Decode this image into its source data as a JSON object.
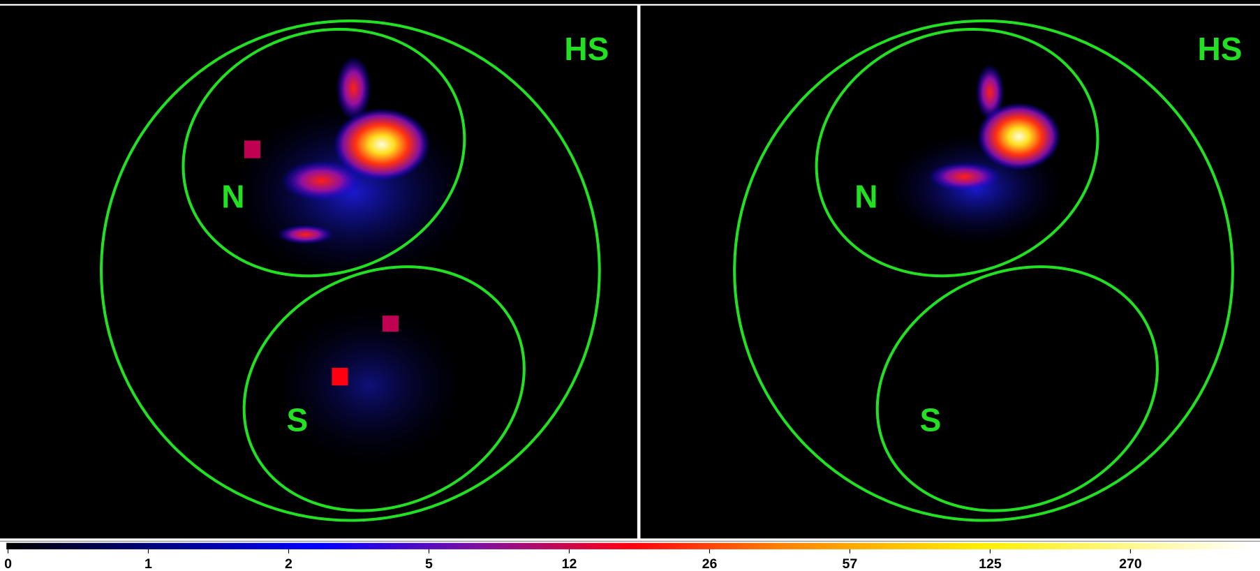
{
  "panels": [
    {
      "labels": [
        "N",
        "S",
        "HS"
      ]
    },
    {
      "labels": [
        "N",
        "S",
        "HS"
      ]
    }
  ],
  "colorbar": {
    "ticks": [
      0,
      1,
      2,
      5,
      12,
      26,
      57,
      125,
      270
    ]
  }
}
